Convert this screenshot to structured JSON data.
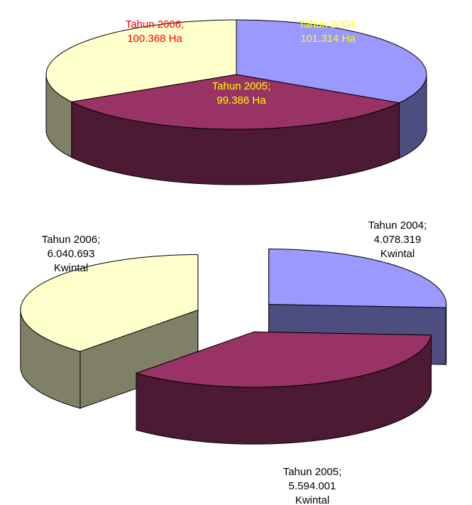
{
  "chart_data": [
    {
      "type": "pie3d",
      "categories": [
        "Tahun 2004;",
        "Tahun 2005;",
        "Tahun 2006;"
      ],
      "values": [
        101314,
        99386,
        100368
      ],
      "value_labels": [
        "101.314 Ha",
        "99.386 Ha",
        "100.368 Ha"
      ],
      "colors": [
        "#9999ff",
        "#993366",
        "#ffffcc"
      ],
      "label_colors": [
        "#ffff00",
        "#ffff00",
        "#ff0000"
      ]
    },
    {
      "type": "pie3d",
      "categories": [
        "Tahun 2004;",
        "Tahun 2005;",
        "Tahun 2006;"
      ],
      "values": [
        4078319,
        5594001,
        6040693
      ],
      "value_labels": [
        "4.078.319 Kwintal",
        "5.594.001 Kwintal",
        "6.040.693 Kwintal"
      ],
      "colors": [
        "#9999ff",
        "#993366",
        "#ffffcc"
      ],
      "label_colors": [
        "#000000",
        "#000000",
        "#000000"
      ],
      "exploded": true
    }
  ]
}
